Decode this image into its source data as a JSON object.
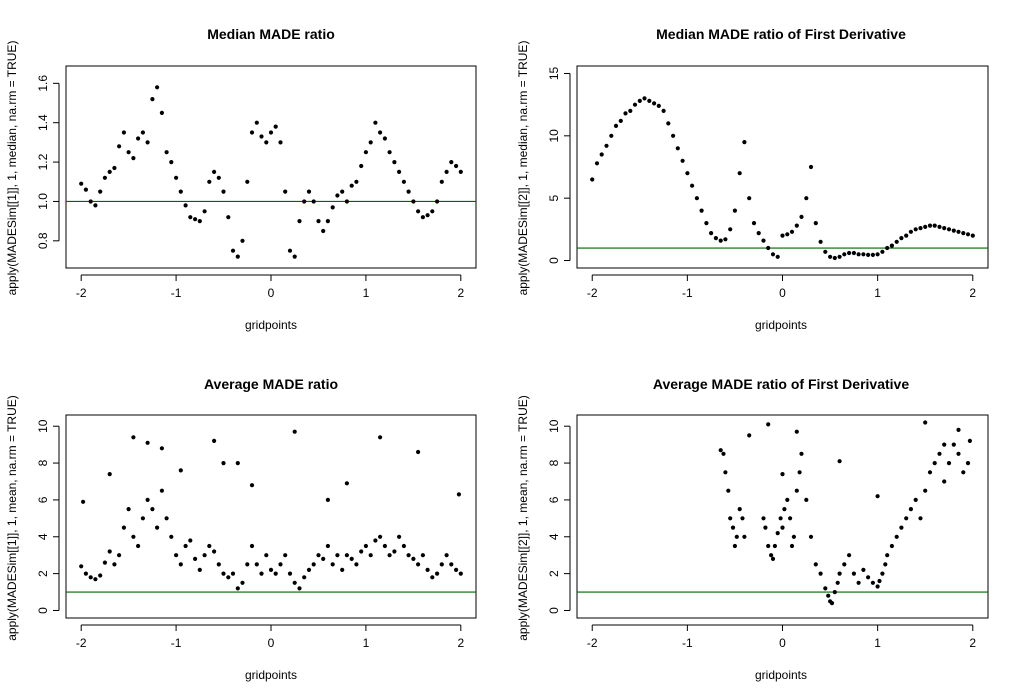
{
  "colors": {
    "points": "#000000",
    "reference_line": "#006400",
    "axis": "#000000"
  },
  "chart_data": [
    {
      "type": "scatter",
      "title": "Median MADE ratio",
      "xlabel": "gridpoints",
      "ylabel": "apply(MADESim[[1]], 1, median, na.rm = TRUE)",
      "xlim": [
        -2,
        2
      ],
      "ylim": [
        0.7,
        1.65
      ],
      "xticks": [
        -2,
        -1,
        0,
        1,
        2
      ],
      "yticks": [
        0.8,
        1.0,
        1.2,
        1.4,
        1.6
      ],
      "ytick_labels": [
        "0.8",
        "1.0",
        "1.2",
        "1.4",
        "1.6"
      ],
      "hline": 1,
      "x": [
        -2.0,
        -1.95,
        -1.9,
        -1.85,
        -1.8,
        -1.75,
        -1.7,
        -1.65,
        -1.6,
        -1.55,
        -1.5,
        -1.45,
        -1.4,
        -1.35,
        -1.3,
        -1.25,
        -1.2,
        -1.15,
        -1.1,
        -1.05,
        -1.0,
        -0.95,
        -0.9,
        -0.85,
        -0.8,
        -0.75,
        -0.7,
        -0.65,
        -0.6,
        -0.55,
        -0.5,
        -0.45,
        -0.4,
        -0.35,
        -0.3,
        -0.25,
        -0.2,
        -0.15,
        -0.1,
        -0.05,
        0.0,
        0.05,
        0.1,
        0.15,
        0.2,
        0.25,
        0.3,
        0.35,
        0.4,
        0.45,
        0.5,
        0.55,
        0.6,
        0.65,
        0.7,
        0.75,
        0.8,
        0.85,
        0.9,
        0.95,
        1.0,
        1.05,
        1.1,
        1.15,
        1.2,
        1.25,
        1.3,
        1.35,
        1.4,
        1.45,
        1.5,
        1.55,
        1.6,
        1.65,
        1.7,
        1.75,
        1.8,
        1.85,
        1.9,
        1.95,
        2.0
      ],
      "values": [
        1.09,
        1.06,
        1.0,
        0.98,
        1.05,
        1.12,
        1.15,
        1.17,
        1.28,
        1.35,
        1.25,
        1.22,
        1.32,
        1.35,
        1.3,
        1.52,
        1.58,
        1.45,
        1.25,
        1.2,
        1.12,
        1.05,
        0.98,
        0.92,
        0.91,
        0.9,
        0.95,
        1.1,
        1.15,
        1.12,
        1.05,
        0.92,
        0.75,
        0.72,
        0.8,
        1.1,
        1.35,
        1.4,
        1.33,
        1.3,
        1.35,
        1.38,
        1.3,
        1.05,
        0.75,
        0.72,
        0.9,
        1.0,
        1.05,
        1.0,
        0.9,
        0.85,
        0.9,
        0.97,
        1.03,
        1.05,
        1.0,
        1.08,
        1.1,
        1.18,
        1.25,
        1.3,
        1.4,
        1.35,
        1.32,
        1.25,
        1.2,
        1.15,
        1.1,
        1.05,
        1.0,
        0.95,
        0.92,
        0.93,
        0.95,
        1.0,
        1.1,
        1.15,
        1.2,
        1.18,
        1.15
      ]
    },
    {
      "type": "scatter",
      "title": "Median MADE ratio of First Derivative",
      "xlabel": "gridpoints",
      "ylabel": "apply(MADESim[[2]], 1, median, na.rm = TRUE)",
      "xlim": [
        -2,
        2
      ],
      "ylim": [
        0,
        15
      ],
      "xticks": [
        -2,
        -1,
        0,
        1,
        2
      ],
      "yticks": [
        0,
        5,
        10,
        15
      ],
      "ytick_labels": [
        "0",
        "5",
        "10",
        "15"
      ],
      "hline": 1,
      "x": [
        -2.0,
        -1.95,
        -1.9,
        -1.85,
        -1.8,
        -1.75,
        -1.7,
        -1.65,
        -1.6,
        -1.55,
        -1.5,
        -1.45,
        -1.4,
        -1.35,
        -1.3,
        -1.25,
        -1.2,
        -1.15,
        -1.1,
        -1.05,
        -1.0,
        -0.95,
        -0.9,
        -0.85,
        -0.8,
        -0.75,
        -0.7,
        -0.65,
        -0.6,
        -0.55,
        -0.5,
        -0.45,
        -0.4,
        -0.35,
        -0.3,
        -0.25,
        -0.2,
        -0.15,
        -0.1,
        -0.05,
        0.0,
        0.05,
        0.1,
        0.15,
        0.2,
        0.25,
        0.3,
        0.35,
        0.4,
        0.45,
        0.5,
        0.55,
        0.6,
        0.65,
        0.7,
        0.75,
        0.8,
        0.85,
        0.9,
        0.95,
        1.0,
        1.05,
        1.1,
        1.15,
        1.2,
        1.25,
        1.3,
        1.35,
        1.4,
        1.45,
        1.5,
        1.55,
        1.6,
        1.65,
        1.7,
        1.75,
        1.8,
        1.85,
        1.9,
        1.95,
        2.0
      ],
      "values": [
        6.5,
        7.8,
        8.5,
        9.2,
        10.0,
        10.8,
        11.2,
        11.8,
        12.0,
        12.5,
        12.8,
        13.0,
        12.8,
        12.6,
        12.4,
        12.0,
        11.0,
        10.0,
        9.0,
        8.0,
        7.0,
        6.0,
        5.0,
        4.0,
        3.0,
        2.2,
        1.8,
        1.6,
        1.7,
        2.5,
        4.0,
        7.0,
        9.5,
        5.0,
        3.0,
        2.2,
        1.6,
        1.0,
        0.5,
        0.3,
        2.0,
        2.1,
        2.3,
        2.8,
        3.5,
        5.0,
        7.5,
        3.0,
        1.5,
        0.7,
        0.3,
        0.2,
        0.3,
        0.5,
        0.6,
        0.6,
        0.5,
        0.5,
        0.45,
        0.45,
        0.5,
        0.7,
        1.0,
        1.2,
        1.5,
        1.8,
        2.0,
        2.3,
        2.5,
        2.6,
        2.7,
        2.8,
        2.8,
        2.7,
        2.6,
        2.5,
        2.4,
        2.3,
        2.2,
        2.1,
        2.0
      ]
    },
    {
      "type": "scatter",
      "title": "Average MADE ratio",
      "xlabel": "gridpoints",
      "ylabel": "apply(MADESim[[1]], 1, mean, na.rm = TRUE)",
      "xlim": [
        -2,
        2
      ],
      "ylim": [
        0,
        10.2
      ],
      "xticks": [
        -2,
        -1,
        0,
        1,
        2
      ],
      "yticks": [
        0,
        2,
        4,
        6,
        8,
        10
      ],
      "ytick_labels": [
        "0",
        "2",
        "4",
        "6",
        "8",
        "10"
      ],
      "hline": 1,
      "x": [
        -2.0,
        -1.95,
        -1.9,
        -1.85,
        -1.8,
        -1.75,
        -1.7,
        -1.65,
        -1.6,
        -1.55,
        -1.5,
        -1.45,
        -1.4,
        -1.35,
        -1.3,
        -1.25,
        -1.2,
        -1.15,
        -1.1,
        -1.05,
        -1.0,
        -0.95,
        -0.9,
        -0.85,
        -0.8,
        -0.75,
        -0.7,
        -0.65,
        -0.6,
        -0.55,
        -0.5,
        -0.45,
        -0.4,
        -0.35,
        -0.3,
        -0.25,
        -0.2,
        -0.15,
        -0.1,
        -0.05,
        0.0,
        0.05,
        0.1,
        0.15,
        0.2,
        0.25,
        0.3,
        0.35,
        0.4,
        0.45,
        0.5,
        0.55,
        0.6,
        0.65,
        0.7,
        0.75,
        0.8,
        0.85,
        0.9,
        0.95,
        1.0,
        1.05,
        1.1,
        1.15,
        1.2,
        1.25,
        1.3,
        1.35,
        1.4,
        1.45,
        1.5,
        1.55,
        1.6,
        1.65,
        1.7,
        1.75,
        1.8,
        1.85,
        1.9,
        1.95,
        2.0,
        -1.98,
        -1.7,
        -1.45,
        -1.3,
        -1.15,
        -0.95,
        -0.6,
        -0.5,
        -0.35,
        -0.2,
        0.25,
        0.6,
        0.8,
        1.15,
        1.55,
        1.98
      ],
      "values": [
        2.4,
        2.0,
        1.8,
        1.7,
        1.9,
        2.6,
        3.2,
        2.5,
        3.0,
        4.5,
        5.5,
        4.0,
        3.5,
        5.0,
        6.0,
        5.5,
        4.5,
        6.5,
        5.0,
        4.0,
        3.0,
        2.5,
        3.5,
        3.8,
        2.8,
        2.2,
        3.0,
        3.5,
        3.2,
        2.5,
        2.0,
        1.8,
        2.0,
        1.2,
        1.5,
        2.5,
        3.5,
        2.5,
        2.0,
        3.0,
        2.2,
        2.0,
        2.5,
        3.0,
        2.0,
        1.5,
        1.2,
        1.8,
        2.2,
        2.5,
        3.0,
        2.8,
        3.5,
        2.5,
        3.0,
        2.2,
        3.0,
        2.8,
        2.5,
        3.2,
        3.5,
        3.0,
        3.8,
        4.0,
        3.5,
        3.0,
        3.2,
        4.0,
        3.5,
        3.0,
        2.8,
        2.5,
        3.0,
        2.2,
        1.8,
        2.0,
        2.5,
        3.0,
        2.5,
        2.2,
        2.0,
        5.9,
        7.4,
        9.4,
        9.1,
        8.8,
        7.6,
        9.2,
        8.0,
        8.0,
        6.8,
        9.7,
        6.0,
        6.9,
        9.4,
        8.6,
        6.3
      ]
    },
    {
      "type": "scatter",
      "title": "Average MADE ratio of First Derivative",
      "xlabel": "gridpoints",
      "ylabel": "apply(MADESim[[2]], 1, mean, na.rm = TRUE)",
      "xlim": [
        -2,
        2
      ],
      "ylim": [
        0,
        10.2
      ],
      "xticks": [
        -2,
        -1,
        0,
        1,
        2
      ],
      "yticks": [
        0,
        2,
        4,
        6,
        8,
        10
      ],
      "ytick_labels": [
        "0",
        "2",
        "4",
        "6",
        "8",
        "10"
      ],
      "hline": 1,
      "x": [
        -0.65,
        -0.62,
        -0.6,
        -0.57,
        -0.55,
        -0.52,
        -0.5,
        -0.48,
        -0.45,
        -0.42,
        -0.4,
        -0.2,
        -0.18,
        -0.15,
        -0.12,
        -0.1,
        -0.08,
        -0.05,
        -0.02,
        0.0,
        0.02,
        0.05,
        0.08,
        0.1,
        0.12,
        0.15,
        0.18,
        0.2,
        0.25,
        0.3,
        0.35,
        0.4,
        0.45,
        0.48,
        0.5,
        0.52,
        0.55,
        0.58,
        0.6,
        0.65,
        0.7,
        0.75,
        0.8,
        0.85,
        0.9,
        0.95,
        1.0,
        1.02,
        1.05,
        1.08,
        1.1,
        1.15,
        1.2,
        1.25,
        1.3,
        1.35,
        1.4,
        1.45,
        1.5,
        1.55,
        1.6,
        1.65,
        1.7,
        1.75,
        1.8,
        1.85,
        1.9,
        1.95,
        1.97,
        -0.35,
        -0.15,
        0.0,
        0.15,
        0.6,
        1.0,
        1.5,
        1.7,
        1.85
      ],
      "values": [
        8.7,
        8.5,
        7.5,
        6.5,
        5.0,
        4.5,
        3.5,
        4.0,
        5.5,
        5.0,
        4.0,
        5.0,
        4.5,
        3.5,
        3.0,
        2.8,
        3.5,
        4.2,
        5.0,
        4.5,
        5.5,
        6.0,
        5.0,
        3.5,
        4.0,
        6.5,
        7.5,
        8.5,
        6.0,
        4.0,
        2.5,
        2.0,
        1.2,
        0.8,
        0.5,
        0.4,
        1.0,
        1.5,
        2.0,
        2.5,
        3.0,
        2.0,
        1.5,
        2.2,
        1.8,
        1.5,
        1.3,
        1.6,
        2.0,
        2.5,
        3.0,
        3.5,
        4.0,
        4.5,
        5.0,
        5.5,
        6.0,
        5.0,
        6.5,
        7.5,
        8.0,
        8.5,
        7.0,
        8.0,
        9.0,
        8.5,
        7.5,
        8.0,
        9.2,
        9.5,
        10.1,
        7.4,
        9.7,
        8.1,
        6.2,
        10.2,
        9.0,
        9.8
      ]
    }
  ]
}
